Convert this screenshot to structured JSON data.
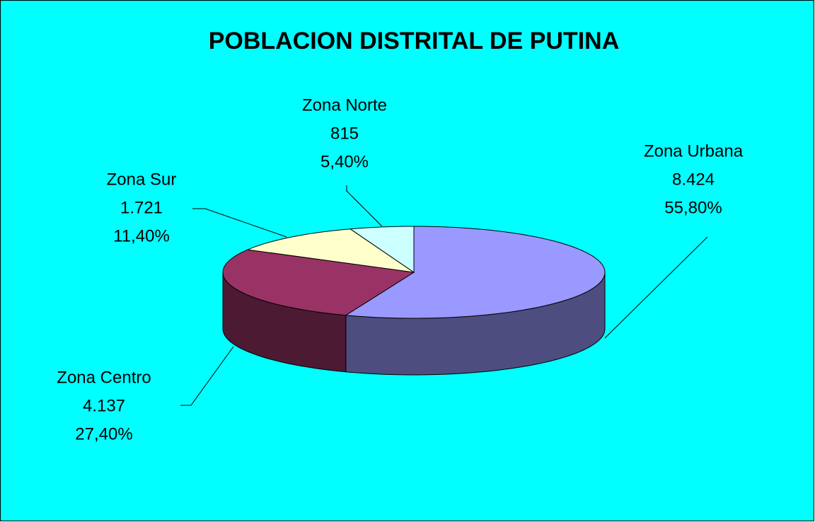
{
  "chart_data": {
    "type": "pie3d",
    "title": "POBLACION  DISTRITAL DE PUTINA",
    "categories": [
      "Zona Urbana",
      "Zona Centro",
      "Zona Sur",
      "Zona Norte"
    ],
    "values": [
      8424,
      4137,
      1721,
      815
    ],
    "value_labels": [
      "8.424",
      "4.137",
      "1.721",
      "815"
    ],
    "percents": [
      55.8,
      27.4,
      11.4,
      5.4
    ],
    "percent_labels": [
      "55,80%",
      "27,40%",
      "11,40%",
      "5,40%"
    ],
    "colors": [
      "#9999ff",
      "#993366",
      "#ffffcc",
      "#ccffff"
    ],
    "background": "#00ffff"
  }
}
